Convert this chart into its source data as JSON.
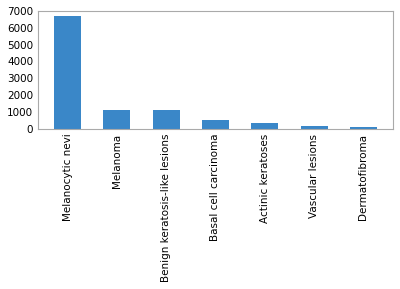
{
  "categories": [
    "Melanocytic nevi",
    "Melanoma",
    "Benign keratosis-like lesions",
    "Basal cell carcinoma",
    "Actinic keratoses",
    "Vascular lesions",
    "Dermatofibroma"
  ],
  "values": [
    6705,
    1113,
    1099,
    514,
    327,
    142,
    115
  ],
  "bar_color": "#3a87c8",
  "ylim": [
    0,
    7000
  ],
  "yticks": [
    0,
    1000,
    2000,
    3000,
    4000,
    5000,
    6000,
    7000
  ],
  "background_color": "#ffffff",
  "tick_label_fontsize": 7.5,
  "bar_width": 0.55
}
